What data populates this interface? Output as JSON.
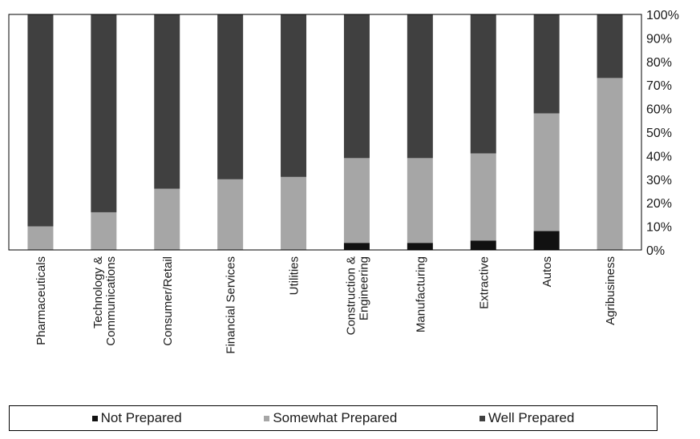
{
  "chart_data": {
    "type": "bar",
    "stacked": true,
    "orientation": "vertical",
    "categories": [
      "Pharmaceuticals",
      "Technology & Communications",
      "Consumer/Retail",
      "Financial Services",
      "Utilities",
      "Construction & Engineering",
      "Manufacturing",
      "Extractive",
      "Autos",
      "Agribusiness"
    ],
    "category_lines": [
      [
        "Pharmaceuticals"
      ],
      [
        "Technology &",
        "Communications"
      ],
      [
        "Consumer/Retail"
      ],
      [
        "Financial Services"
      ],
      [
        "Utilities"
      ],
      [
        "Construction &",
        "Engineering"
      ],
      [
        "Manufacturing"
      ],
      [
        "Extractive"
      ],
      [
        "Autos"
      ],
      [
        "Agribusiness"
      ]
    ],
    "series": [
      {
        "name": "Not Prepared",
        "color": "#111111",
        "values": [
          0,
          0,
          0,
          0,
          0,
          3,
          3,
          4,
          8,
          0
        ]
      },
      {
        "name": "Somewhat Prepared",
        "color": "#a6a6a6",
        "values": [
          10,
          16,
          26,
          30,
          31,
          36,
          36,
          37,
          50,
          73
        ]
      },
      {
        "name": "Well Prepared",
        "color": "#404040",
        "values": [
          90,
          84,
          74,
          70,
          69,
          61,
          61,
          59,
          42,
          27
        ]
      }
    ],
    "ylim": [
      0,
      100
    ],
    "yticks": [
      "0%",
      "10%",
      "20%",
      "30%",
      "40%",
      "50%",
      "60%",
      "70%",
      "80%",
      "90%",
      "100%"
    ],
    "y_axis_position": "right",
    "grid": false,
    "legend_position": "bottom",
    "title": "",
    "xlabel": "",
    "ylabel": ""
  }
}
